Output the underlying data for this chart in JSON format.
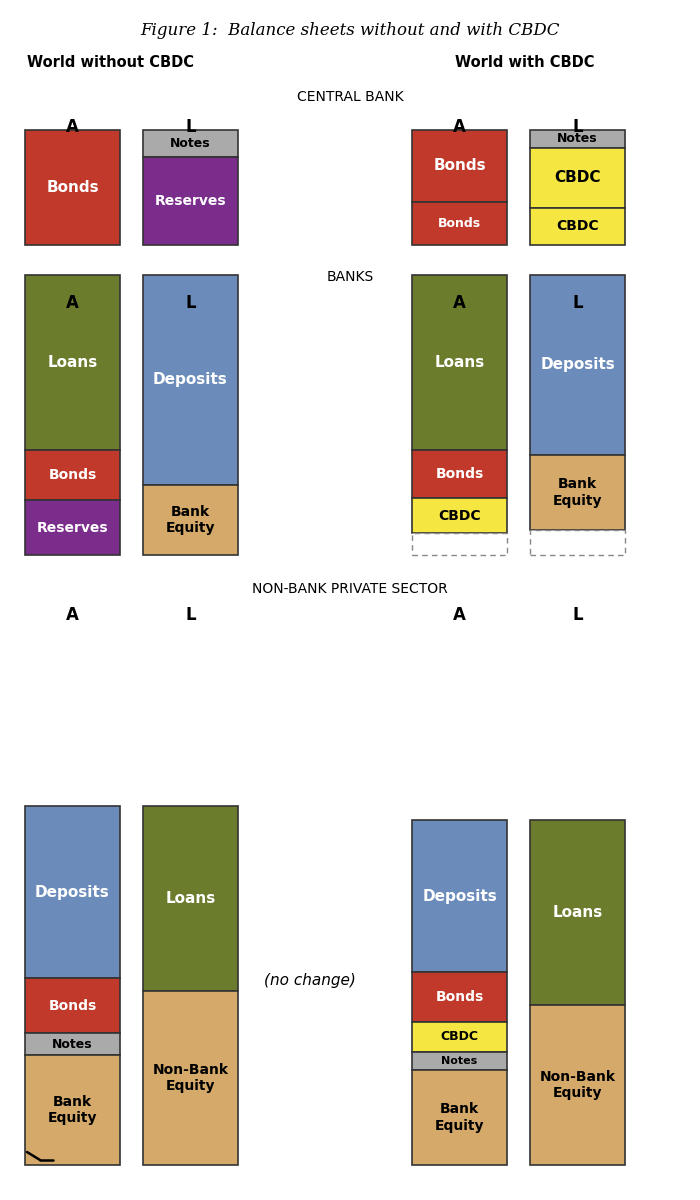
{
  "title": "Figure 1:  Balance sheets without and with CBDC",
  "world_left_label": "World without CBDC",
  "world_right_label": "World with CBDC",
  "colors": {
    "bonds_red": "#c0392b",
    "notes_gray": "#aaaaaa",
    "reserves_purple": "#7b2d8b",
    "cbdc_yellow": "#f5e642",
    "loans_green": "#6b7c2d",
    "deposits_blue": "#6b8cba",
    "bank_equity_tan": "#d4a96a",
    "white": "#ffffff",
    "outline": "#333333",
    "dashed_outline": "#888888"
  },
  "fig_bg": "#ffffff"
}
